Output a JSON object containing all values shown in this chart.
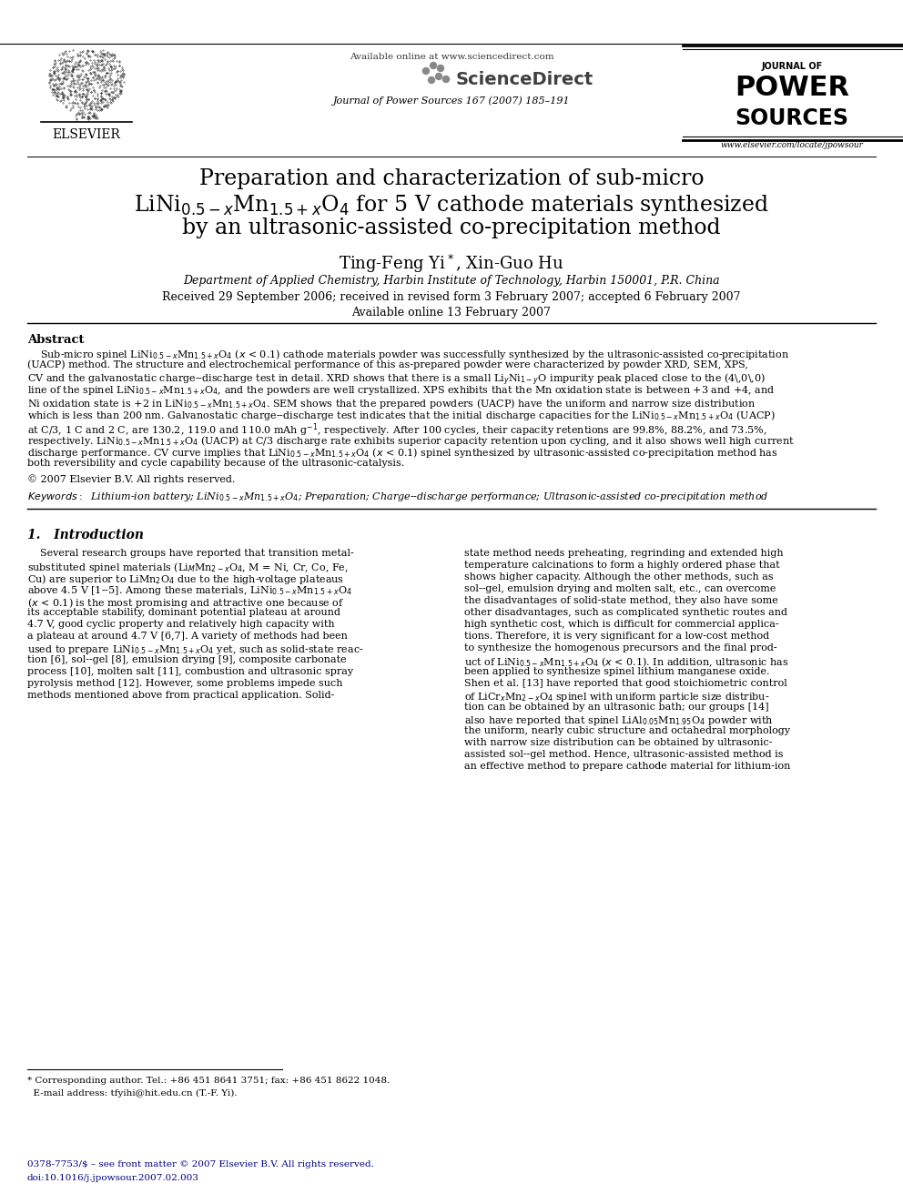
{
  "bg_color": "#ffffff",
  "available_online_text": "Available online at www.sciencedirect.com",
  "journal_text": "Journal of Power Sources 167 (2007) 185–191",
  "website_text": "www.elsevier.com/locate/jpowsour",
  "elsevier_text": "ELSEVIER",
  "title_line1": "Preparation and characterization of sub-micro",
  "title_line3": "by an ultrasonic-assisted co-precipitation method",
  "author_text": "Ting-Feng Yi*, Xin-Guo Hu",
  "affiliation_text": "Department of Applied Chemistry, Harbin Institute of Technology, Harbin 150001, P.R. China",
  "received_text": "Received 29 September 2006; received in revised form 3 February 2007; accepted 6 February 2007",
  "available_text": "Available online 13 February 2007",
  "abstract_title": "Abstract",
  "copyright_text": "© 2007 Elsevier B.V. All rights reserved.",
  "section1_title": "1.   Introduction",
  "footnote_line": "* Corresponding author. Tel.: +86 451 8641 3751; fax: +86 451 8622 1048.",
  "footnote_email": "  E-mail address: tfyihi@hit.edu.cn (T.-F. Yi).",
  "issn_line1": "0378-7753/$ – see front matter © 2007 Elsevier B.V. All rights reserved.",
  "issn_line2": "doi:10.1016/j.jpowsour.2007.02.003"
}
